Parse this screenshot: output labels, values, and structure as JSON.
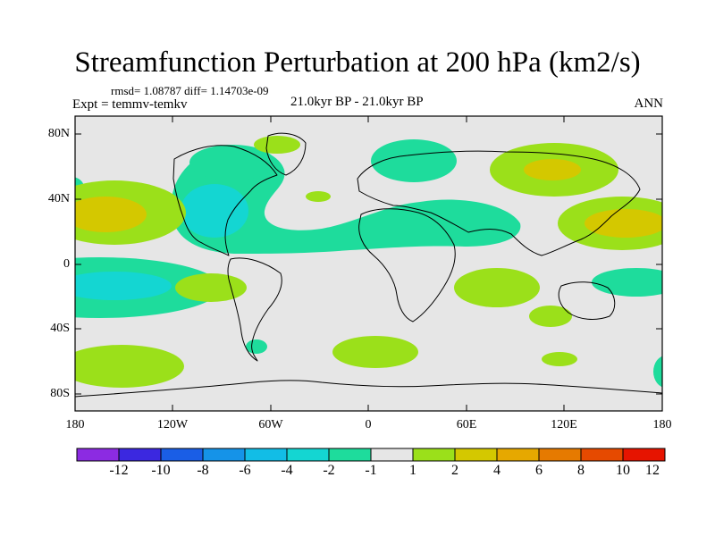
{
  "header": {
    "title": "Streamfunction Perturbation at 200 hPa (km2/s)",
    "stats": "rmsd= 1.08787 diff= 1.14703e-09",
    "experiment": "Expt = temmv-temkv",
    "period": "21.0kyr BP - 21.0kyr BP",
    "season": "ANN"
  },
  "map": {
    "lat_range": [
      -90,
      90
    ],
    "lon_range": [
      -180,
      180
    ],
    "ocean_fill": "#e6e6e6",
    "y_ticks": [
      "80N",
      "40N",
      "0",
      "40S",
      "80S"
    ],
    "x_ticks": [
      "180",
      "120W",
      "60W",
      "0",
      "60E",
      "120E",
      "180"
    ]
  },
  "colorbar": {
    "labels": [
      "-12",
      "-10",
      "-8",
      "-6",
      "-4",
      "-2",
      "-1",
      "1",
      "2",
      "4",
      "6",
      "8",
      "10",
      "12"
    ],
    "colors": [
      "#8c2be2",
      "#3b28e0",
      "#1a5ee6",
      "#1593e8",
      "#12bde6",
      "#14d6d2",
      "#1edc9c",
      "#e6e6e6",
      "#9be01a",
      "#d4c800",
      "#e6a800",
      "#e67a00",
      "#e64a00",
      "#e61400"
    ],
    "range": "-14 to 14 km2/s"
  }
}
